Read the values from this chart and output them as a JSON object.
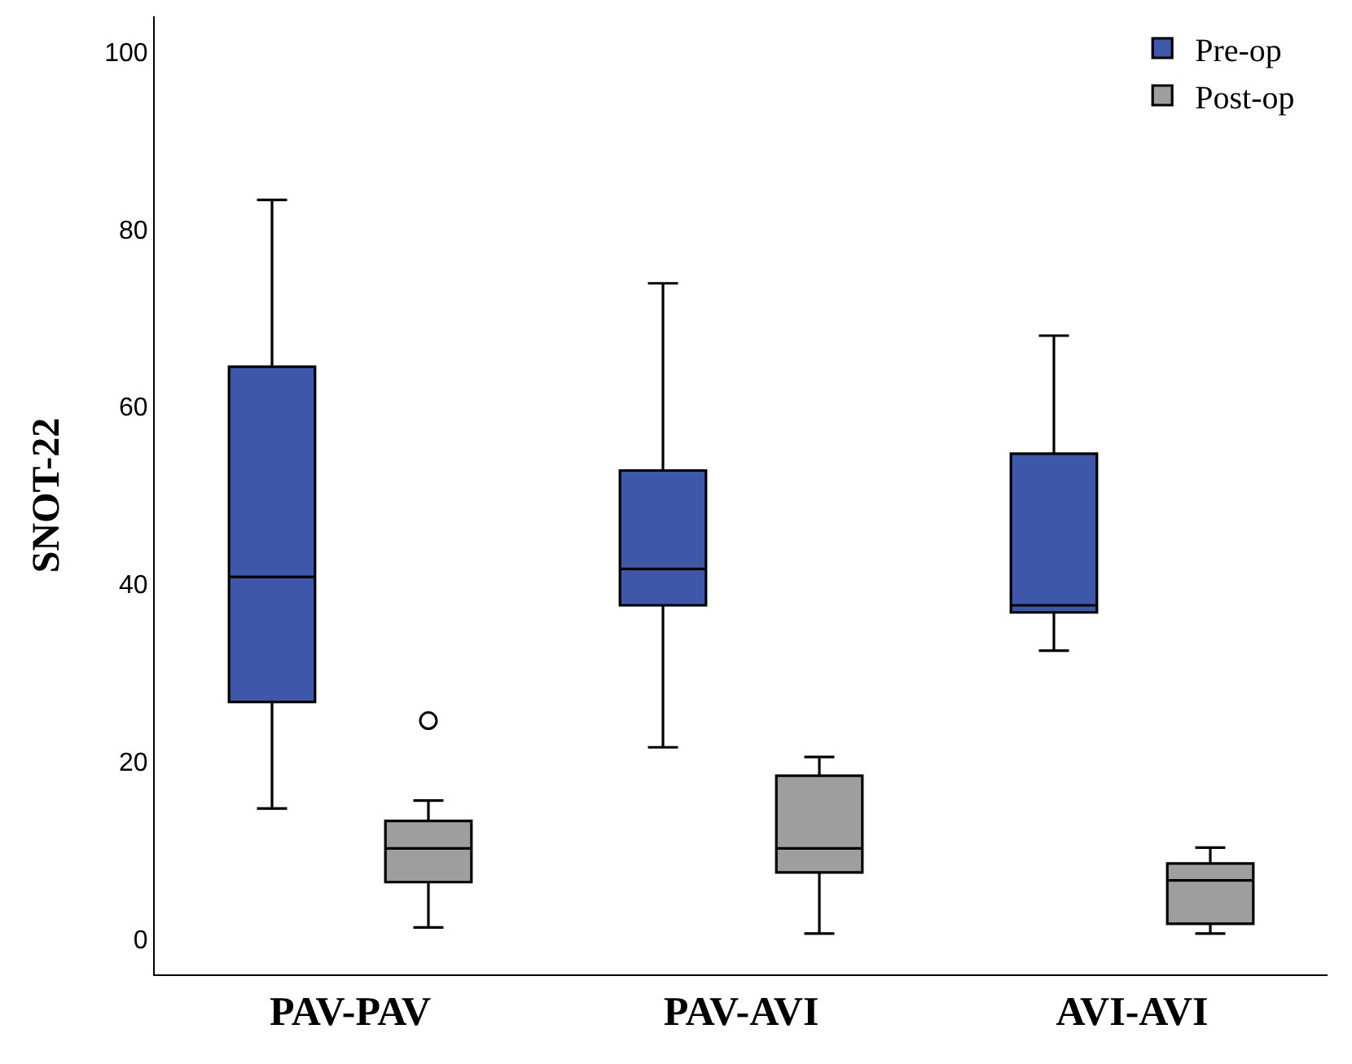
{
  "chart_data": {
    "type": "box",
    "ylabel": "SNOT-22",
    "categories": [
      "PAV-PAV",
      "PAV-AVI",
      "AVI-AVI"
    ],
    "ylim": [
      -4,
      104
    ],
    "yticks": [
      0,
      20,
      40,
      60,
      80,
      100
    ],
    "grid": false,
    "legend": "top right",
    "series": [
      {
        "name": "Pre-op",
        "color": "#3f57a8",
        "boxes": [
          {
            "low": 14.7,
            "q1": 26.7,
            "median": 40.8,
            "q3": 64.5,
            "high": 83.3
          },
          {
            "low": 21.6,
            "q1": 37.6,
            "median": 41.7,
            "q3": 52.8,
            "high": 73.9
          },
          {
            "low": 32.5,
            "q1": 36.8,
            "median": 37.6,
            "q3": 54.7,
            "high": 68
          }
        ]
      },
      {
        "name": "Post-op",
        "color": "#9e9e9e",
        "boxes": [
          {
            "low": 1.3,
            "q1": 6.4,
            "median": 10.2,
            "q3": 13.3,
            "high": 15.6,
            "outliers": [
              24.6
            ]
          },
          {
            "low": 0.6,
            "q1": 7.5,
            "median": 10.2,
            "q3": 18.4,
            "high": 20.5
          },
          {
            "low": 0.6,
            "q1": 1.7,
            "median": 6.6,
            "q3": 8.5,
            "high": 10.3
          }
        ]
      }
    ]
  }
}
